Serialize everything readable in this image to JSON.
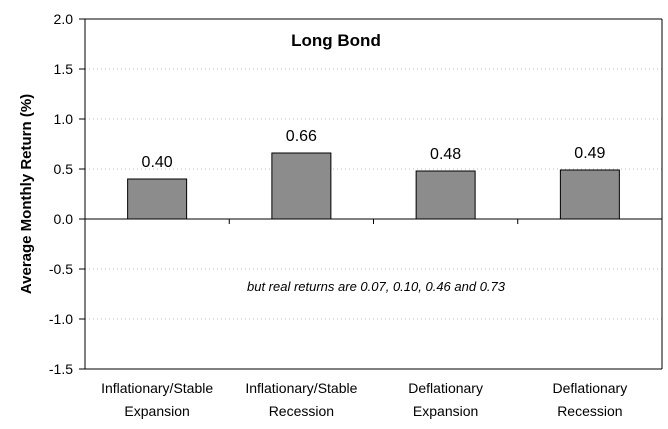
{
  "chart_data": {
    "type": "bar",
    "title": "Long Bond",
    "ylabel": "Average Monthly Return (%)",
    "xlabel": "",
    "categories": [
      [
        "Inflationary/Stable",
        "Expansion"
      ],
      [
        "Inflationary/Stable",
        "Recession"
      ],
      [
        "Deflationary",
        "Expansion"
      ],
      [
        "Deflationary",
        "Recession"
      ]
    ],
    "values": [
      0.4,
      0.66,
      0.48,
      0.49
    ],
    "value_labels": [
      "0.40",
      "0.66",
      "0.48",
      "0.49"
    ],
    "ylim": [
      -1.5,
      2.0
    ],
    "yticks": [
      "-1.5",
      "-1.0",
      "-0.5",
      "0.0",
      "0.5",
      "1.0",
      "1.5",
      "2.0"
    ],
    "ytick_values": [
      -1.5,
      -1.0,
      -0.5,
      0.0,
      0.5,
      1.0,
      1.5,
      2.0
    ],
    "grid": true,
    "annotation": "but real returns are 0.07, 0.10, 0.46 and 0.73",
    "colors": {
      "bar": "#8c8c8c",
      "bar_stroke": "#000000",
      "grid": "#bdbdbd",
      "axis": "#000000"
    }
  }
}
